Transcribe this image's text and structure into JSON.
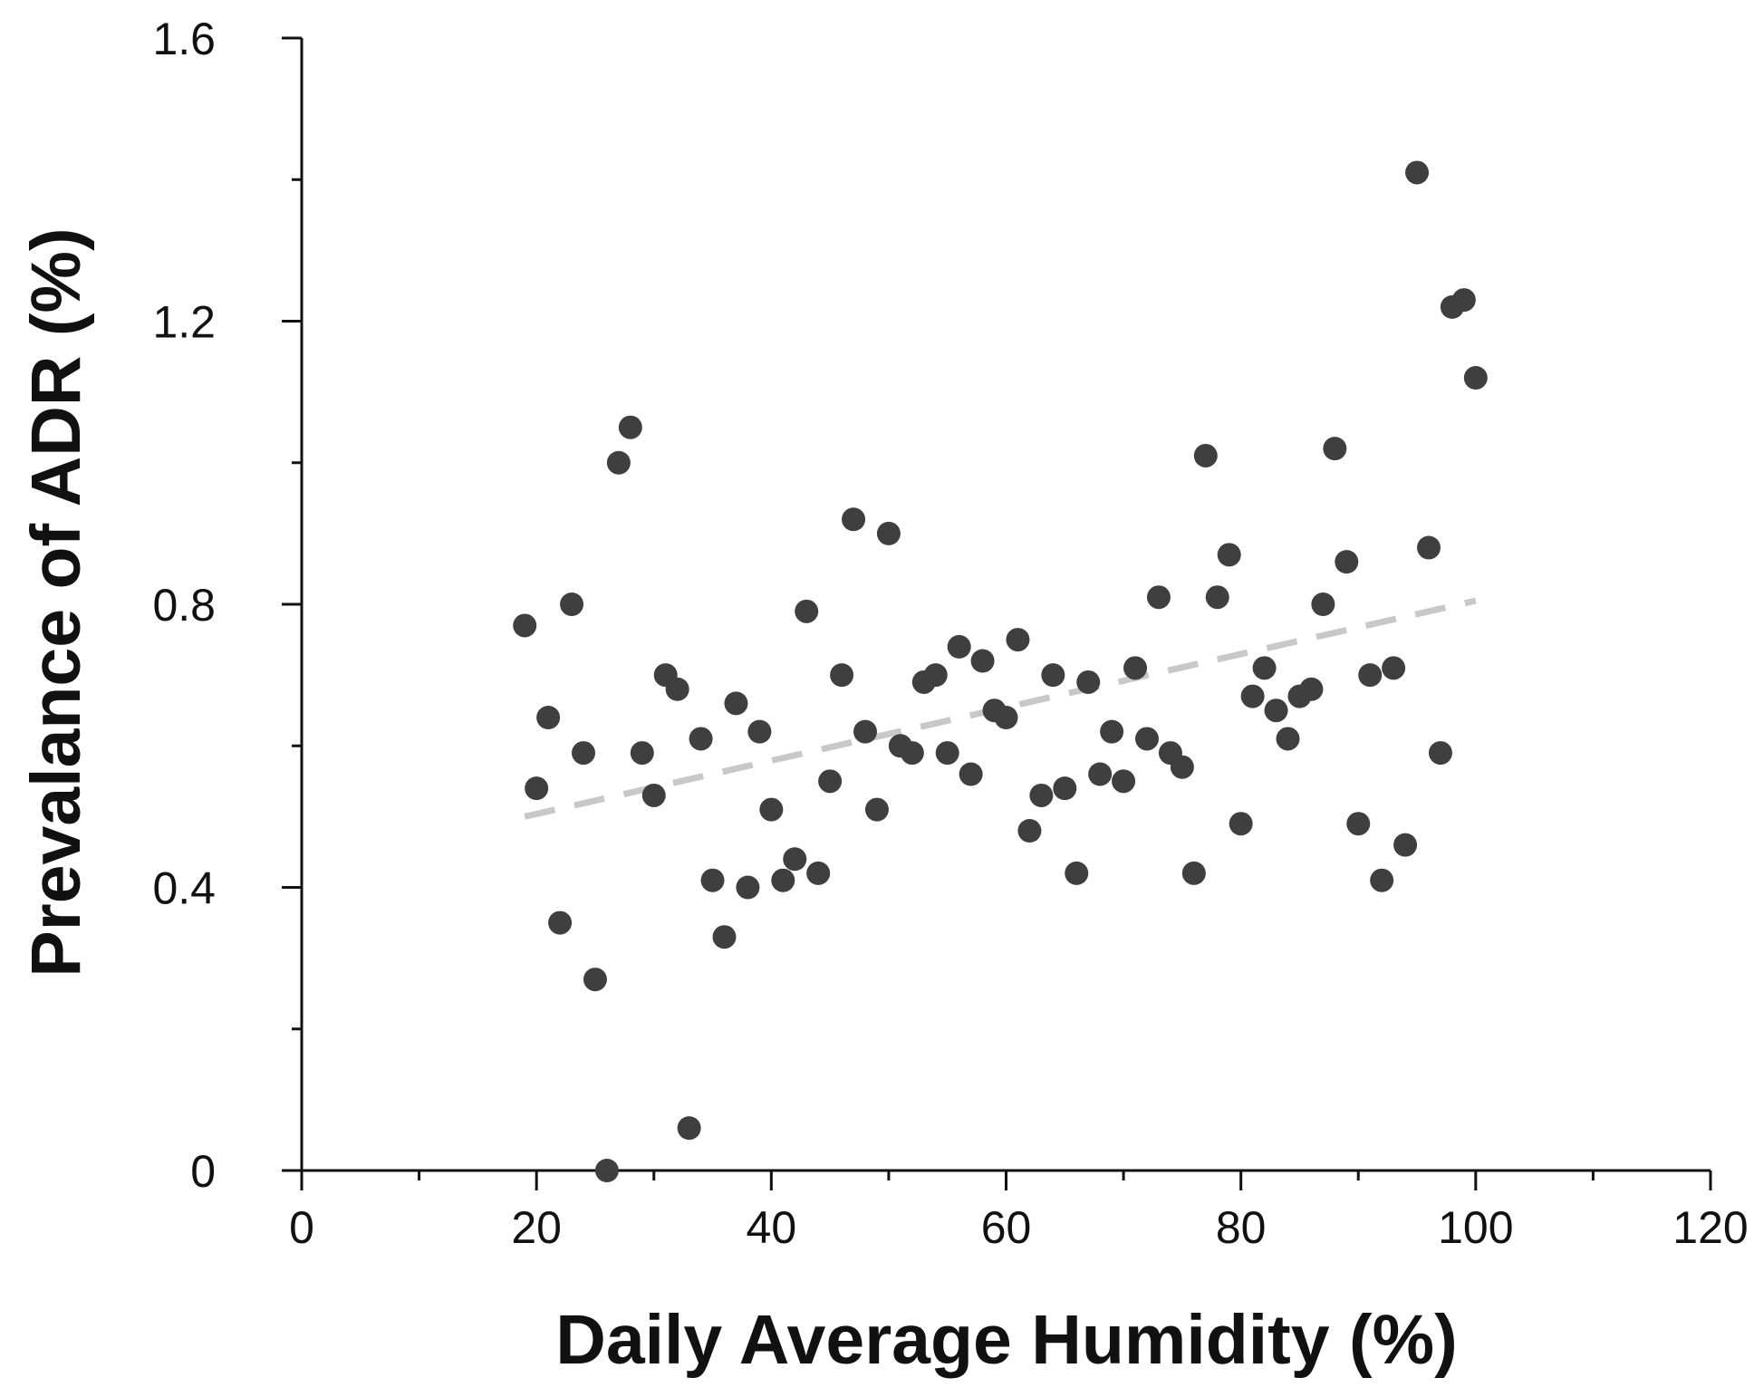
{
  "colors": {
    "background": "#ffffff",
    "axis": "#111111",
    "points": "#3f3f3f",
    "trendline": "#c8c8c8"
  },
  "chart_data": {
    "type": "scatter",
    "title": "",
    "xlabel": "Daily Average Humidity (%)",
    "ylabel": "Prevalance of ADR (%)",
    "xlim": [
      0,
      120
    ],
    "ylim": [
      0,
      1.6
    ],
    "x_ticks": [
      0,
      20,
      40,
      60,
      80,
      100,
      120
    ],
    "x_tick_labels": [
      "0",
      "20",
      "40",
      "60",
      "80",
      "100",
      "120"
    ],
    "x_minor_step": 10,
    "y_ticks": [
      0,
      0.4,
      0.8,
      1.2,
      1.6
    ],
    "y_tick_labels": [
      "0",
      "0.4",
      "0.8",
      "1.2",
      "1.6"
    ],
    "y_minor_step": 0.2,
    "grid": false,
    "legend": "none",
    "series": [
      {
        "points": [
          {
            "x": 19,
            "y": 0.77
          },
          {
            "x": 20,
            "y": 0.54
          },
          {
            "x": 21,
            "y": 0.64
          },
          {
            "x": 22,
            "y": 0.35
          },
          {
            "x": 23,
            "y": 0.8
          },
          {
            "x": 24,
            "y": 0.59
          },
          {
            "x": 25,
            "y": 0.27
          },
          {
            "x": 26,
            "y": 0.0
          },
          {
            "x": 27,
            "y": 1.0
          },
          {
            "x": 28,
            "y": 1.05
          },
          {
            "x": 29,
            "y": 0.59
          },
          {
            "x": 30,
            "y": 0.53
          },
          {
            "x": 31,
            "y": 0.7
          },
          {
            "x": 32,
            "y": 0.68
          },
          {
            "x": 33,
            "y": 0.06
          },
          {
            "x": 34,
            "y": 0.61
          },
          {
            "x": 35,
            "y": 0.41
          },
          {
            "x": 36,
            "y": 0.33
          },
          {
            "x": 37,
            "y": 0.66
          },
          {
            "x": 38,
            "y": 0.4
          },
          {
            "x": 39,
            "y": 0.62
          },
          {
            "x": 40,
            "y": 0.51
          },
          {
            "x": 41,
            "y": 0.41
          },
          {
            "x": 42,
            "y": 0.44
          },
          {
            "x": 43,
            "y": 0.79
          },
          {
            "x": 44,
            "y": 0.42
          },
          {
            "x": 45,
            "y": 0.55
          },
          {
            "x": 46,
            "y": 0.7
          },
          {
            "x": 47,
            "y": 0.92
          },
          {
            "x": 48,
            "y": 0.62
          },
          {
            "x": 49,
            "y": 0.51
          },
          {
            "x": 50,
            "y": 0.9
          },
          {
            "x": 51,
            "y": 0.6
          },
          {
            "x": 52,
            "y": 0.59
          },
          {
            "x": 53,
            "y": 0.69
          },
          {
            "x": 54,
            "y": 0.7
          },
          {
            "x": 55,
            "y": 0.59
          },
          {
            "x": 56,
            "y": 0.74
          },
          {
            "x": 57,
            "y": 0.56
          },
          {
            "x": 58,
            "y": 0.72
          },
          {
            "x": 59,
            "y": 0.65
          },
          {
            "x": 60,
            "y": 0.64
          },
          {
            "x": 61,
            "y": 0.75
          },
          {
            "x": 62,
            "y": 0.48
          },
          {
            "x": 63,
            "y": 0.53
          },
          {
            "x": 64,
            "y": 0.7
          },
          {
            "x": 65,
            "y": 0.54
          },
          {
            "x": 66,
            "y": 0.42
          },
          {
            "x": 67,
            "y": 0.69
          },
          {
            "x": 68,
            "y": 0.56
          },
          {
            "x": 69,
            "y": 0.62
          },
          {
            "x": 70,
            "y": 0.55
          },
          {
            "x": 71,
            "y": 0.71
          },
          {
            "x": 72,
            "y": 0.61
          },
          {
            "x": 73,
            "y": 0.81
          },
          {
            "x": 74,
            "y": 0.59
          },
          {
            "x": 75,
            "y": 0.57
          },
          {
            "x": 76,
            "y": 0.42
          },
          {
            "x": 77,
            "y": 1.01
          },
          {
            "x": 78,
            "y": 0.81
          },
          {
            "x": 79,
            "y": 0.87
          },
          {
            "x": 80,
            "y": 0.49
          },
          {
            "x": 81,
            "y": 0.67
          },
          {
            "x": 82,
            "y": 0.71
          },
          {
            "x": 83,
            "y": 0.65
          },
          {
            "x": 84,
            "y": 0.61
          },
          {
            "x": 85,
            "y": 0.67
          },
          {
            "x": 86,
            "y": 0.68
          },
          {
            "x": 87,
            "y": 0.8
          },
          {
            "x": 88,
            "y": 1.02
          },
          {
            "x": 89,
            "y": 0.86
          },
          {
            "x": 90,
            "y": 0.49
          },
          {
            "x": 91,
            "y": 0.7
          },
          {
            "x": 92,
            "y": 0.41
          },
          {
            "x": 93,
            "y": 0.71
          },
          {
            "x": 94,
            "y": 0.46
          },
          {
            "x": 95,
            "y": 1.41
          },
          {
            "x": 96,
            "y": 0.88
          },
          {
            "x": 97,
            "y": 0.59
          },
          {
            "x": 98,
            "y": 1.22
          },
          {
            "x": 99,
            "y": 1.23
          },
          {
            "x": 100,
            "y": 1.12
          }
        ]
      }
    ],
    "trendline": {
      "style": "dashed",
      "x": [
        19,
        100
      ],
      "y": [
        0.5,
        0.805
      ]
    }
  }
}
